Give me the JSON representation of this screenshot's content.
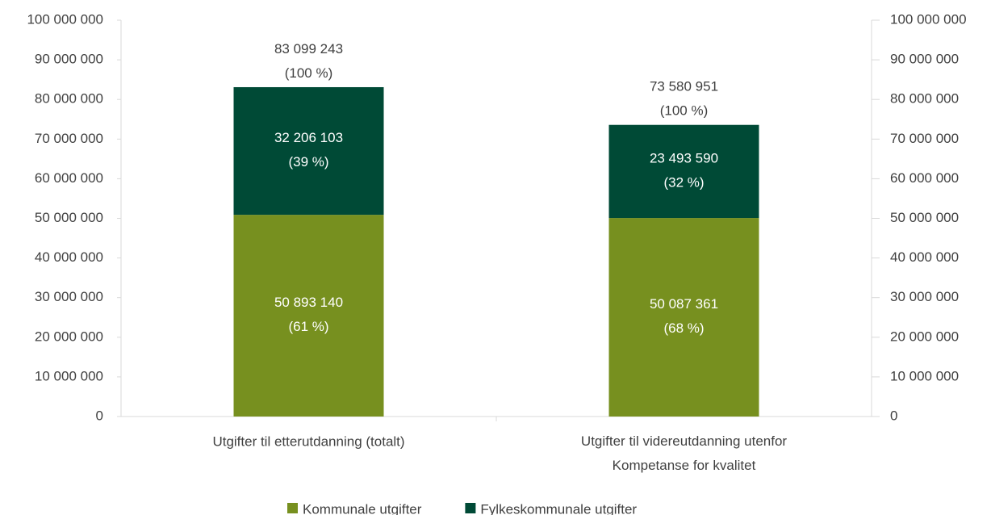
{
  "chart_data": {
    "type": "stacked_bar",
    "categories": [
      "Utgifter til etterutdanning (totalt)",
      "Utgifter til videreutdanning utenfor\nKompetanse for kvalitet"
    ],
    "series": [
      {
        "name": "Kommunale utgifter",
        "color": "#77901f",
        "values": [
          50893140,
          50087361
        ],
        "value_labels": [
          "50 893 140\n(61 %)",
          "50 087 361\n(68 %)"
        ]
      },
      {
        "name": "Fylkeskommunale utgifter",
        "color": "#004a36",
        "values": [
          32206103,
          23493590
        ],
        "value_labels": [
          "32 206 103\n(39 %)",
          "23 493 590\n(32 %)"
        ]
      }
    ],
    "totals": [
      83099243,
      73580951
    ],
    "total_labels": [
      "83 099 243\n(100 %)",
      "73 580 951\n(100 %)"
    ],
    "ylim": [
      0,
      100000000
    ],
    "yticks": [
      0,
      {
        "value": 10000000,
        "label": "10 000 000"
      },
      {
        "value": 20000000,
        "label": "20 000 000"
      },
      {
        "value": 30000000,
        "label": "30 000 000"
      },
      {
        "value": 40000000,
        "label": "40 000 000"
      },
      {
        "value": 50000000,
        "label": "50 000 000"
      },
      {
        "value": 60000000,
        "label": "60 000 000"
      },
      {
        "value": 70000000,
        "label": "70 000 000"
      },
      {
        "value": 80000000,
        "label": "80 000 000"
      },
      {
        "value": 90000000,
        "label": "90 000 000"
      },
      {
        "value": 100000000,
        "label": "100 000 000"
      }
    ],
    "y2lim": [
      0,
      100000000
    ],
    "y2ticks": [
      0,
      {
        "value": 10000000,
        "label": "10 000 000"
      },
      {
        "value": 20000000,
        "label": "20 000 000"
      },
      {
        "value": 30000000,
        "label": "30 000 000"
      },
      {
        "value": 40000000,
        "label": "40 000 000"
      },
      {
        "value": 50000000,
        "label": "50 000 000"
      },
      {
        "value": 60000000,
        "label": "60 000 000"
      },
      {
        "value": 70000000,
        "label": "70 000 000"
      },
      {
        "value": 80000000,
        "label": "80 000 000"
      },
      {
        "value": 90000000,
        "label": "90 000 000"
      },
      {
        "value": 100000000,
        "label": "100 000 000"
      }
    ],
    "legend": "bottom"
  }
}
